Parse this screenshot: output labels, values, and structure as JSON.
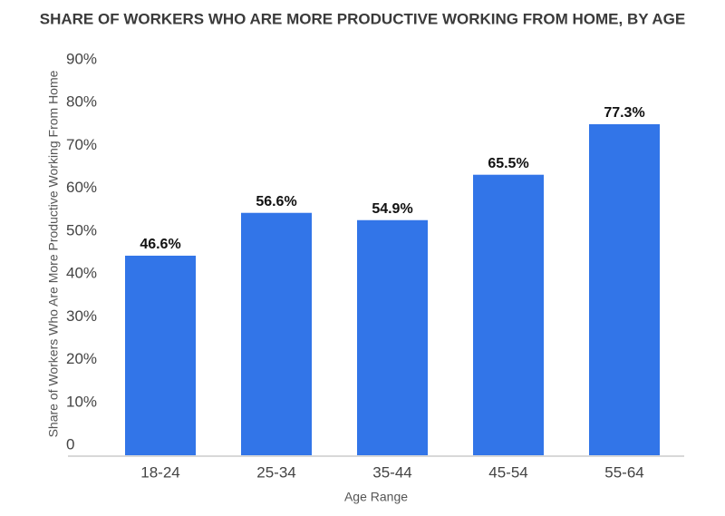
{
  "chart_data": {
    "type": "bar",
    "title": "SHARE OF WORKERS WHO ARE MORE PRODUCTIVE WORKING FROM HOME, BY AGE",
    "x_label": "Age Range",
    "y_label": "Share of Workers Who Are More Productive Working From Home",
    "categories": [
      "18-24",
      "25-34",
      "35-44",
      "45-54",
      "55-64"
    ],
    "values": [
      46.6,
      56.6,
      54.9,
      65.5,
      77.3
    ],
    "value_labels": [
      "46.6%",
      "56.6%",
      "54.9%",
      "65.5%",
      "77.3%"
    ],
    "color": "#3275e8",
    "ylim": [
      0,
      90
    ],
    "yticks": [
      0,
      {
        "value": 10,
        "label": "10%"
      },
      {
        "value": 20,
        "label": "20%"
      },
      {
        "value": 30,
        "label": "30%"
      },
      {
        "value": 40,
        "label": "40%"
      },
      {
        "value": 50,
        "label": "50%"
      },
      {
        "value": 60,
        "label": "60%"
      },
      {
        "value": 70,
        "label": "70%"
      },
      {
        "value": 80,
        "label": "80%"
      },
      {
        "value": 90,
        "label": "90%"
      }
    ],
    "grid": false
  }
}
